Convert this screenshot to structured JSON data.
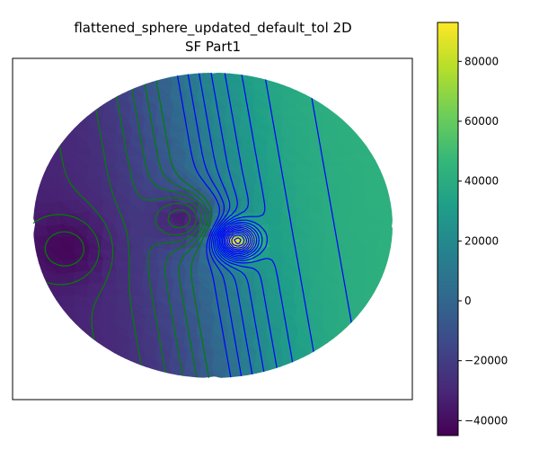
{
  "chart_data": {
    "type": "heatmap",
    "title_line1": "flattened_sphere_updated_default_tol 2D",
    "title_line2": "SF Part1",
    "xlabel": "",
    "ylabel": "",
    "grid": false,
    "legend": "none",
    "colorbar": {
      "min": -45000,
      "max": 93000,
      "ticks": [
        -40000,
        -20000,
        0,
        20000,
        40000,
        60000,
        80000
      ],
      "tick_labels": [
        "−40000",
        "−20000",
        "0",
        "20000",
        "40000",
        "60000",
        "80000"
      ],
      "colormap": "viridis",
      "stops": [
        "#440154",
        "#482878",
        "#3e4989",
        "#31688e",
        "#26828e",
        "#1f9e89",
        "#35b779",
        "#6ece58",
        "#b5de2b",
        "#fde725"
      ]
    },
    "field": {
      "description_free": true,
      "sources": [
        {
          "u": -0.14,
          "v": -0.05,
          "value": -32000
        },
        {
          "u": 0.13,
          "v": 0.1,
          "value": 93000
        }
      ],
      "background": 5000,
      "value_range": [
        -45000,
        93000
      ]
    },
    "contour_colors": {
      "negative": "#008000",
      "positive": "#0000ff"
    }
  }
}
